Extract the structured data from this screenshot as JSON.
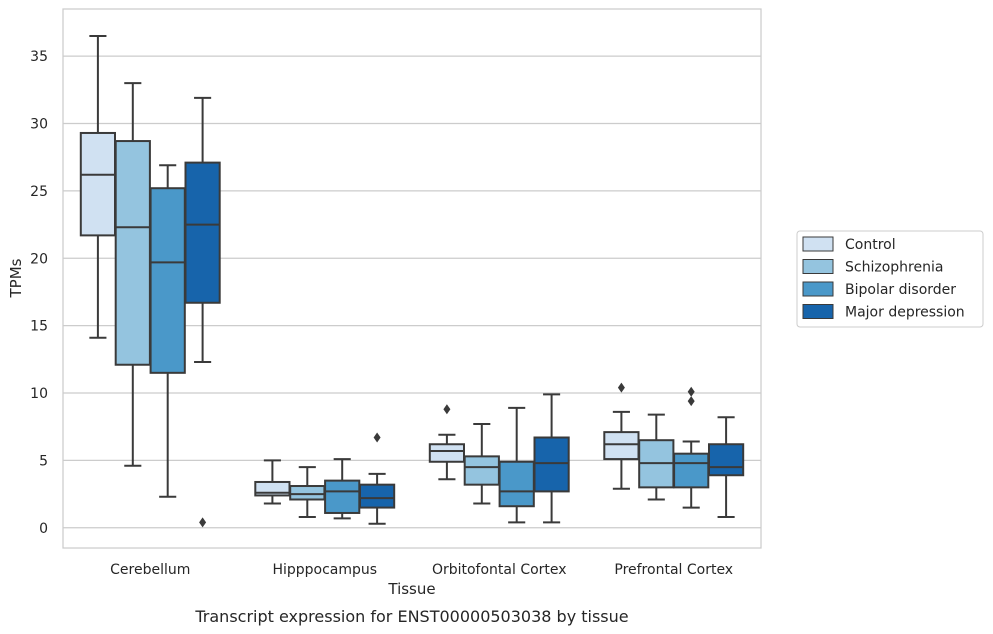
{
  "chart_data": {
    "type": "box",
    "caption": "Transcript expression for ENST00000503038 by tissue",
    "xlabel": "Tissue",
    "ylabel": "TPMs",
    "ylim": [
      -1.5,
      38.5
    ],
    "yticks": [
      0,
      5,
      10,
      15,
      20,
      25,
      30,
      35
    ],
    "grid": true,
    "legend_position": "right",
    "categories": [
      "Cerebellum",
      "Hipppocampus",
      "Orbitofontal Cortex",
      "Prefrontal Cortex"
    ],
    "series": [
      {
        "name": "Control",
        "color": "#d0e1f2",
        "boxes": [
          {
            "min": 14.1,
            "q1": 21.7,
            "median": 26.2,
            "q3": 29.3,
            "max": 36.5,
            "outliers": []
          },
          {
            "min": 1.8,
            "q1": 2.4,
            "median": 2.6,
            "q3": 3.4,
            "max": 5.0,
            "outliers": []
          },
          {
            "min": 3.6,
            "q1": 4.9,
            "median": 5.7,
            "q3": 6.2,
            "max": 6.9,
            "outliers": [
              8.8
            ]
          },
          {
            "min": 2.9,
            "q1": 5.1,
            "median": 6.2,
            "q3": 7.1,
            "max": 8.6,
            "outliers": [
              10.4
            ]
          }
        ]
      },
      {
        "name": "Schizophrenia",
        "color": "#94c4df",
        "boxes": [
          {
            "min": 4.6,
            "q1": 12.1,
            "median": 22.3,
            "q3": 28.7,
            "max": 33.0,
            "outliers": []
          },
          {
            "min": 0.8,
            "q1": 2.1,
            "median": 2.5,
            "q3": 3.1,
            "max": 4.5,
            "outliers": []
          },
          {
            "min": 1.8,
            "q1": 3.2,
            "median": 4.5,
            "q3": 5.3,
            "max": 7.7,
            "outliers": []
          },
          {
            "min": 2.1,
            "q1": 3.0,
            "median": 4.8,
            "q3": 6.5,
            "max": 8.4,
            "outliers": []
          }
        ]
      },
      {
        "name": "Bipolar disorder",
        "color": "#4a98c9",
        "boxes": [
          {
            "min": 2.3,
            "q1": 11.5,
            "median": 19.7,
            "q3": 25.2,
            "max": 26.9,
            "outliers": []
          },
          {
            "min": 0.7,
            "q1": 1.1,
            "median": 2.7,
            "q3": 3.5,
            "max": 5.1,
            "outliers": []
          },
          {
            "min": 0.4,
            "q1": 1.6,
            "median": 2.7,
            "q3": 4.9,
            "max": 8.9,
            "outliers": []
          },
          {
            "min": 1.5,
            "q1": 3.0,
            "median": 4.8,
            "q3": 5.5,
            "max": 6.4,
            "outliers": [
              9.4,
              10.1
            ]
          }
        ]
      },
      {
        "name": "Major depression",
        "color": "#1764ab",
        "boxes": [
          {
            "min": 12.3,
            "q1": 16.7,
            "median": 22.5,
            "q3": 27.1,
            "max": 31.9,
            "outliers": [
              0.4
            ]
          },
          {
            "min": 0.3,
            "q1": 1.5,
            "median": 2.2,
            "q3": 3.2,
            "max": 4.0,
            "outliers": [
              6.7
            ]
          },
          {
            "min": 0.4,
            "q1": 2.7,
            "median": 4.8,
            "q3": 6.7,
            "max": 9.9,
            "outliers": []
          },
          {
            "min": 0.8,
            "q1": 3.9,
            "median": 4.5,
            "q3": 6.2,
            "max": 8.2,
            "outliers": []
          }
        ]
      }
    ]
  }
}
